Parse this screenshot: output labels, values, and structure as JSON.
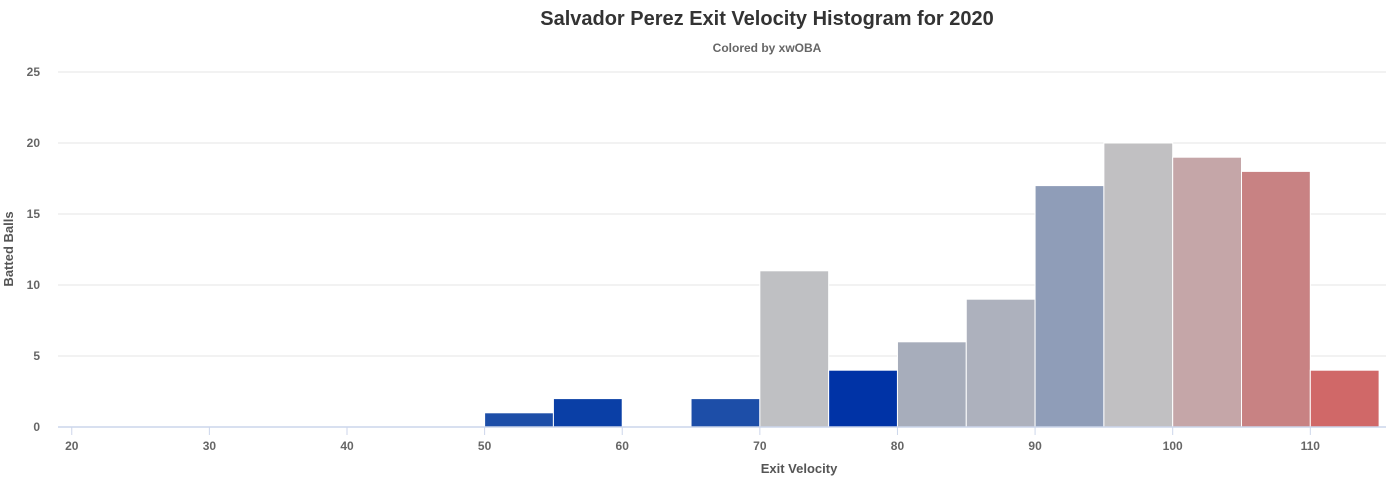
{
  "chart_data": {
    "type": "bar",
    "title": "Salvador Perez Exit Velocity Histogram for 2020",
    "subtitle": "Colored by xwOBA",
    "xlabel": "Exit Velocity",
    "ylabel": "Batted Balls",
    "xlim": [
      19,
      115.5
    ],
    "ylim": [
      0,
      25
    ],
    "x_ticks": [
      "20",
      "30",
      "40",
      "50",
      "60",
      "70",
      "80",
      "90",
      "100",
      "110"
    ],
    "y_ticks": [
      "0",
      "5",
      "10",
      "15",
      "20",
      "25"
    ],
    "grid": true,
    "bin_width": 5,
    "bins": [
      {
        "start": 50,
        "count": 1,
        "color": "#1d4ea8"
      },
      {
        "start": 55,
        "count": 2,
        "color": "#0a3fa6"
      },
      {
        "start": 65,
        "count": 2,
        "color": "#1d4ea8"
      },
      {
        "start": 70,
        "count": 11,
        "color": "#bfc0c3"
      },
      {
        "start": 75,
        "count": 4,
        "color": "#0033a6"
      },
      {
        "start": 80,
        "count": 6,
        "color": "#a7adbb"
      },
      {
        "start": 85,
        "count": 9,
        "color": "#adb1bd"
      },
      {
        "start": 90,
        "count": 17,
        "color": "#8f9db8"
      },
      {
        "start": 95,
        "count": 20,
        "color": "#c1c0c2"
      },
      {
        "start": 100,
        "count": 19,
        "color": "#c5a6a8"
      },
      {
        "start": 105,
        "count": 18,
        "color": "#c88283"
      },
      {
        "start": 110,
        "count": 4,
        "color": "#d06868"
      }
    ]
  }
}
